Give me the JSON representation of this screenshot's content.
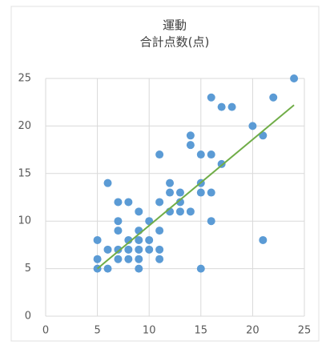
{
  "chart_data": {
    "type": "scatter",
    "title": "運動",
    "subtitle": "合計点数(点)",
    "series": [
      {
        "color": "#5b9bd5",
        "x": [
          5,
          5,
          5,
          6,
          6,
          6,
          7,
          7,
          7,
          7,
          7,
          8,
          8,
          8,
          8,
          9,
          9,
          9,
          9,
          9,
          9,
          10,
          10,
          10,
          11,
          11,
          11,
          11,
          11,
          12,
          12,
          12,
          13,
          13,
          13,
          14,
          14,
          14,
          15,
          15,
          15,
          15,
          16,
          16,
          16,
          16,
          17,
          17,
          18,
          20,
          21,
          21,
          22,
          24
        ],
        "values": [
          5,
          6,
          8,
          5,
          7,
          14,
          6,
          7,
          9,
          10,
          12,
          6,
          7,
          8,
          12,
          5,
          6,
          7,
          8,
          9,
          11,
          7,
          8,
          10,
          6,
          7,
          9,
          12,
          17,
          11,
          13,
          14,
          11,
          12,
          13,
          11,
          18,
          19,
          5,
          13,
          14,
          17,
          10,
          13,
          17,
          23,
          16,
          22,
          22,
          20,
          8,
          19,
          23,
          25
        ]
      }
    ],
    "trendline": {
      "color": "#70ad47",
      "x": [
        5,
        24
      ],
      "values": [
        5,
        22.2
      ]
    },
    "xlim": [
      0,
      25
    ],
    "xticks": [
      0,
      5,
      10,
      15,
      20,
      25
    ],
    "ylim": [
      0,
      25
    ],
    "yticks": [
      0,
      5,
      10,
      15,
      20,
      25
    ],
    "grid": true
  }
}
